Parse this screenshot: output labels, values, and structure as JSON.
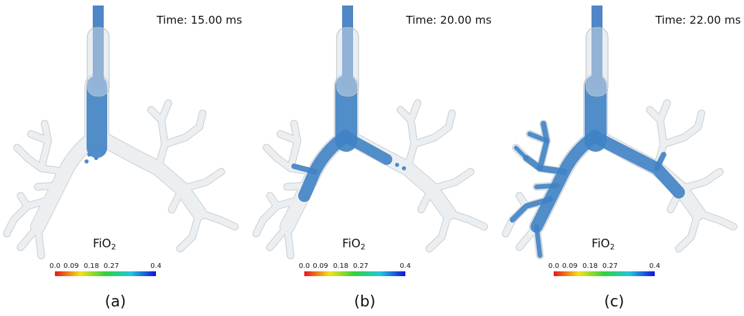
{
  "panels": [
    {
      "time": "Time: 15.00 ms",
      "colorbar": {
        "label": "FiO",
        "label_subscript": "2",
        "ticks": [
          "0.0",
          "0.09",
          "0.18",
          "0.27",
          "0.4"
        ]
      },
      "caption": "(a)"
    },
    {
      "time": "Time: 20.00 ms",
      "colorbar": {
        "label": "FiO",
        "label_subscript": "2",
        "ticks": [
          "0.0",
          "0.09",
          "0.18",
          "0.27",
          "0.4"
        ]
      },
      "caption": "(b)"
    },
    {
      "time": "Time: 22.00 ms",
      "colorbar": {
        "label": "FiO",
        "label_subscript": "2",
        "ticks": [
          "0.0",
          "0.09",
          "0.18",
          "0.27",
          "0.4"
        ]
      },
      "caption": "(c)"
    }
  ]
}
